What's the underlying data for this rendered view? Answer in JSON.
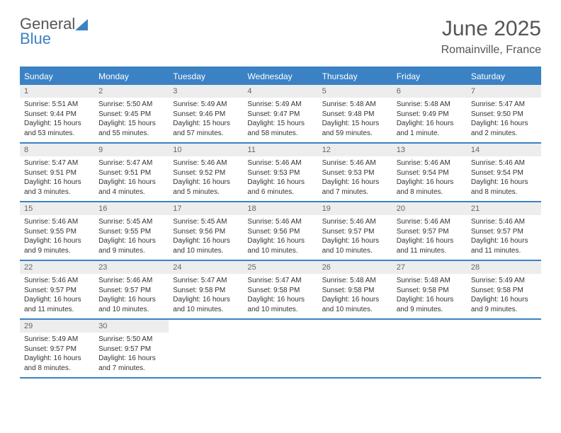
{
  "logo": {
    "line1": "General",
    "line2": "Blue"
  },
  "title": "June 2025",
  "location": "Romainville, France",
  "colors": {
    "accent": "#3b82c4",
    "dayNumBg": "#ededed",
    "text": "#333333"
  },
  "dayNames": [
    "Sunday",
    "Monday",
    "Tuesday",
    "Wednesday",
    "Thursday",
    "Friday",
    "Saturday"
  ],
  "weeks": [
    [
      {
        "num": "1",
        "sunrise": "5:51 AM",
        "sunset": "9:44 PM",
        "daylight": "15 hours and 53 minutes."
      },
      {
        "num": "2",
        "sunrise": "5:50 AM",
        "sunset": "9:45 PM",
        "daylight": "15 hours and 55 minutes."
      },
      {
        "num": "3",
        "sunrise": "5:49 AM",
        "sunset": "9:46 PM",
        "daylight": "15 hours and 57 minutes."
      },
      {
        "num": "4",
        "sunrise": "5:49 AM",
        "sunset": "9:47 PM",
        "daylight": "15 hours and 58 minutes."
      },
      {
        "num": "5",
        "sunrise": "5:48 AM",
        "sunset": "9:48 PM",
        "daylight": "15 hours and 59 minutes."
      },
      {
        "num": "6",
        "sunrise": "5:48 AM",
        "sunset": "9:49 PM",
        "daylight": "16 hours and 1 minute."
      },
      {
        "num": "7",
        "sunrise": "5:47 AM",
        "sunset": "9:50 PM",
        "daylight": "16 hours and 2 minutes."
      }
    ],
    [
      {
        "num": "8",
        "sunrise": "5:47 AM",
        "sunset": "9:51 PM",
        "daylight": "16 hours and 3 minutes."
      },
      {
        "num": "9",
        "sunrise": "5:47 AM",
        "sunset": "9:51 PM",
        "daylight": "16 hours and 4 minutes."
      },
      {
        "num": "10",
        "sunrise": "5:46 AM",
        "sunset": "9:52 PM",
        "daylight": "16 hours and 5 minutes."
      },
      {
        "num": "11",
        "sunrise": "5:46 AM",
        "sunset": "9:53 PM",
        "daylight": "16 hours and 6 minutes."
      },
      {
        "num": "12",
        "sunrise": "5:46 AM",
        "sunset": "9:53 PM",
        "daylight": "16 hours and 7 minutes."
      },
      {
        "num": "13",
        "sunrise": "5:46 AM",
        "sunset": "9:54 PM",
        "daylight": "16 hours and 8 minutes."
      },
      {
        "num": "14",
        "sunrise": "5:46 AM",
        "sunset": "9:54 PM",
        "daylight": "16 hours and 8 minutes."
      }
    ],
    [
      {
        "num": "15",
        "sunrise": "5:46 AM",
        "sunset": "9:55 PM",
        "daylight": "16 hours and 9 minutes."
      },
      {
        "num": "16",
        "sunrise": "5:45 AM",
        "sunset": "9:55 PM",
        "daylight": "16 hours and 9 minutes."
      },
      {
        "num": "17",
        "sunrise": "5:45 AM",
        "sunset": "9:56 PM",
        "daylight": "16 hours and 10 minutes."
      },
      {
        "num": "18",
        "sunrise": "5:46 AM",
        "sunset": "9:56 PM",
        "daylight": "16 hours and 10 minutes."
      },
      {
        "num": "19",
        "sunrise": "5:46 AM",
        "sunset": "9:57 PM",
        "daylight": "16 hours and 10 minutes."
      },
      {
        "num": "20",
        "sunrise": "5:46 AM",
        "sunset": "9:57 PM",
        "daylight": "16 hours and 11 minutes."
      },
      {
        "num": "21",
        "sunrise": "5:46 AM",
        "sunset": "9:57 PM",
        "daylight": "16 hours and 11 minutes."
      }
    ],
    [
      {
        "num": "22",
        "sunrise": "5:46 AM",
        "sunset": "9:57 PM",
        "daylight": "16 hours and 11 minutes."
      },
      {
        "num": "23",
        "sunrise": "5:46 AM",
        "sunset": "9:57 PM",
        "daylight": "16 hours and 10 minutes."
      },
      {
        "num": "24",
        "sunrise": "5:47 AM",
        "sunset": "9:58 PM",
        "daylight": "16 hours and 10 minutes."
      },
      {
        "num": "25",
        "sunrise": "5:47 AM",
        "sunset": "9:58 PM",
        "daylight": "16 hours and 10 minutes."
      },
      {
        "num": "26",
        "sunrise": "5:48 AM",
        "sunset": "9:58 PM",
        "daylight": "16 hours and 10 minutes."
      },
      {
        "num": "27",
        "sunrise": "5:48 AM",
        "sunset": "9:58 PM",
        "daylight": "16 hours and 9 minutes."
      },
      {
        "num": "28",
        "sunrise": "5:49 AM",
        "sunset": "9:58 PM",
        "daylight": "16 hours and 9 minutes."
      }
    ],
    [
      {
        "num": "29",
        "sunrise": "5:49 AM",
        "sunset": "9:57 PM",
        "daylight": "16 hours and 8 minutes."
      },
      {
        "num": "30",
        "sunrise": "5:50 AM",
        "sunset": "9:57 PM",
        "daylight": "16 hours and 7 minutes."
      },
      null,
      null,
      null,
      null,
      null
    ]
  ],
  "labels": {
    "sunrise": "Sunrise:",
    "sunset": "Sunset:",
    "daylight": "Daylight:"
  }
}
